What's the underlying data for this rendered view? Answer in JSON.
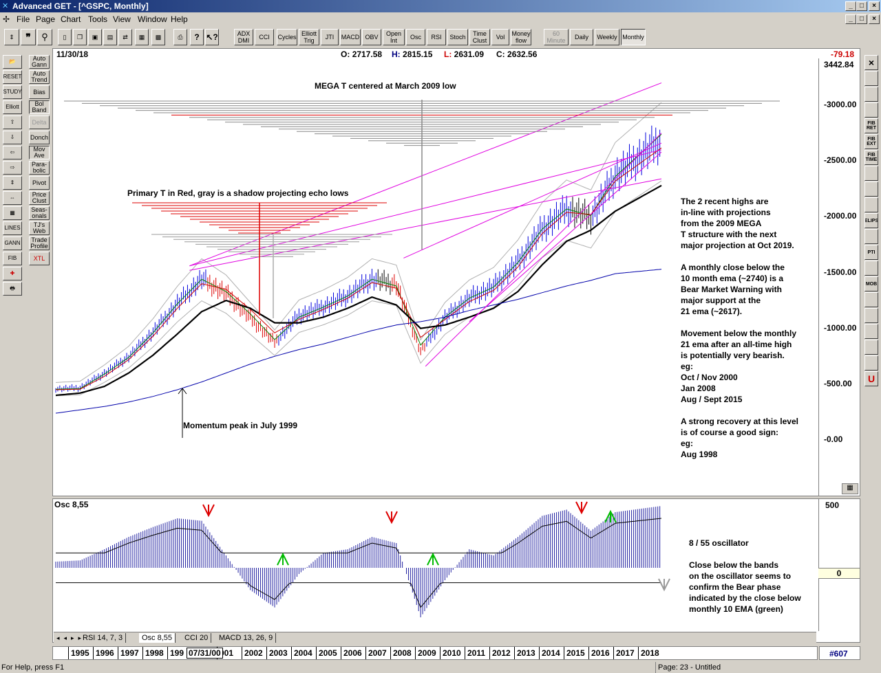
{
  "window": {
    "title": "Advanced GET - [^GSPC, Monthly]",
    "icon": "app-icon",
    "controls": {
      "minimize": "_",
      "maximize": "□",
      "close": "×"
    }
  },
  "menu": [
    "File",
    "Page",
    "Chart",
    "Tools",
    "View",
    "Window",
    "Help"
  ],
  "toolbar": {
    "indicators": [
      {
        "id": "adx",
        "label": "ADX DMI"
      },
      {
        "id": "cci",
        "label": "CCI"
      },
      {
        "id": "cycles",
        "label": "Cycles"
      },
      {
        "id": "elliott",
        "label": "Elliott Trig"
      },
      {
        "id": "jti",
        "label": "JTI"
      },
      {
        "id": "macd",
        "label": "MACD"
      },
      {
        "id": "obv",
        "label": "OBV"
      },
      {
        "id": "openint",
        "label": "Open Int"
      },
      {
        "id": "osc",
        "label": "Osc"
      },
      {
        "id": "rsi",
        "label": "RSI"
      },
      {
        "id": "stoch",
        "label": "Stoch"
      },
      {
        "id": "timeclust",
        "label": "Time Clust"
      },
      {
        "id": "vol",
        "label": "Vol"
      },
      {
        "id": "moneyflow",
        "label": "Money flow"
      }
    ],
    "timeframes": [
      {
        "id": "60min",
        "label": "60 Minute",
        "state": "disabled"
      },
      {
        "id": "daily",
        "label": "Daily",
        "state": "normal"
      },
      {
        "id": "weekly",
        "label": "Weekly",
        "state": "normal"
      },
      {
        "id": "monthly",
        "label": "Monthly",
        "state": "pressed"
      }
    ]
  },
  "left_toolbar": [
    {
      "id": "auto-gann",
      "label": "Auto Gann"
    },
    {
      "id": "auto-trend",
      "label": "Auto Trend"
    },
    {
      "id": "bias",
      "label": "Bias"
    },
    {
      "id": "bol-band",
      "label": "Bol Band"
    },
    {
      "id": "delta",
      "label": "Delta"
    },
    {
      "id": "donch",
      "label": "Donch"
    },
    {
      "id": "mov-ave",
      "label": "Mov Ave"
    },
    {
      "id": "parabolic",
      "label": "Para- bolic"
    },
    {
      "id": "pivot",
      "label": "Pivot"
    },
    {
      "id": "price-clust",
      "label": "Price Clust"
    },
    {
      "id": "seasonals",
      "label": "Seas- onals"
    },
    {
      "id": "tjs-web",
      "label": "TJ's Web"
    },
    {
      "id": "trade-profile",
      "label": "Trade Profile"
    },
    {
      "id": "xtl",
      "label": "XTL"
    }
  ],
  "left_tools": [
    "open",
    "RESET",
    "STUDY",
    "Elliott",
    "up",
    "down",
    "left",
    "right",
    "zoom-in",
    "zoom-out",
    "grid",
    "LINES",
    "GANN",
    "FIB",
    "cross",
    "print"
  ],
  "right_tools": [
    "×",
    "",
    "",
    "",
    "FIB RET",
    "FIB EXT",
    "FIB TIME",
    "",
    "",
    "",
    "ELIPS",
    "",
    "PTI",
    "",
    "MOB",
    "",
    "",
    "",
    "",
    "",
    "U"
  ],
  "chart": {
    "date": "11/30/18",
    "open_label": "O:",
    "open": "2717.58",
    "high_label": "H:",
    "high": "2815.15",
    "low_label": "L:",
    "low": "2631.09",
    "close_label": "C:",
    "close": "2632.56",
    "change": "-79.18",
    "top_price": "3442.84",
    "annotations": {
      "mega_t": "MEGA T centered at March 2009 low",
      "primary_t": "Primary T in Red, gray is a shadow projecting echo lows",
      "momentum": "Momentum peak in July 1999",
      "right_text": "The 2 recent highs are\nin-line with projections\nfrom the 2009 MEGA\nT structure with the next\nmajor projection at Oct 2019.\n\nA monthly close below the\n10 month ema (~2740) is a\nBear Market Warning with\nmajor support at the\n21 ema (~2617).\n\nMovement below the monthly\n21 ema after an all-time high\nis potentially very bearish.\neg:\nOct / Nov 2000\nJan 2008\nAug / Sept 2015\n\nA strong recovery at this level\nis of course a good sign:\neg:\nAug 1998"
    }
  },
  "oscillator": {
    "label": "Osc 8,55",
    "ytick_top": "500",
    "zero": "0",
    "annotation": "8 / 55 oscillator\n\nClose below the bands\non the oscillator seems to\nconfirm the Bear phase\nindicated by the close below\nmonthly 10 EMA (green)"
  },
  "tabs": [
    "RSI 14, 7, 3",
    "Osc 8,55",
    "CCI 20",
    "MACD 13, 26, 9"
  ],
  "time_axis": {
    "years": [
      "1995",
      "1996",
      "1997",
      "1998",
      "199",
      "",
      "001",
      "2002",
      "2003",
      "2004",
      "2005",
      "2006",
      "2007",
      "2008",
      "2009",
      "2010",
      "2011",
      "2012",
      "2013",
      "2014",
      "2015",
      "2016",
      "2017",
      "2018"
    ],
    "cursor_date": "07/31/00",
    "bar_count": "#607"
  },
  "status": {
    "help": "For Help, press F1",
    "page": "Page: 23 - Untitled"
  },
  "chart_data": {
    "type": "line",
    "title": "",
    "xlabel": "",
    "ylabel": "",
    "ylim": [
      -300,
      3442.84
    ],
    "yticks": [
      "3000.00",
      "2500.00",
      "2000.00",
      "1500.00",
      "1000.00",
      "500.00",
      "0.00"
    ],
    "x_years": [
      1994,
      1995,
      1996,
      1997,
      1998,
      1999,
      2000,
      2001,
      2002,
      2003,
      2004,
      2005,
      2006,
      2007,
      2008,
      2009,
      2010,
      2011,
      2012,
      2013,
      2014,
      2015,
      2016,
      2017,
      2018.9
    ],
    "series": [
      {
        "name": "",
        "color": "#0000cc",
        "values": [
          460,
          470,
          600,
          750,
          970,
          1230,
          1450,
          1320,
          1100,
          880,
          1120,
          1200,
          1300,
          1450,
          1400,
          800,
          1100,
          1280,
          1380,
          1600,
          1900,
          2080,
          2000,
          2380,
          2700
        ]
      },
      {
        "name": "",
        "color": "#008000",
        "values": [
          455,
          460,
          590,
          740,
          960,
          1220,
          1440,
          1330,
          1130,
          900,
          1100,
          1190,
          1290,
          1440,
          1380,
          850,
          1100,
          1270,
          1370,
          1590,
          1890,
          2070,
          2010,
          2360,
          2740
        ]
      },
      {
        "name": "",
        "color": "#cc0000",
        "values": [
          450,
          455,
          570,
          720,
          930,
          1180,
          1400,
          1350,
          1170,
          960,
          1080,
          1170,
          1270,
          1410,
          1360,
          920,
          1080,
          1240,
          1340,
          1550,
          1850,
          2040,
          2020,
          2320,
          2617
        ]
      },
      {
        "name": "",
        "color": "#000000",
        "values": [
          400,
          420,
          480,
          600,
          760,
          950,
          1150,
          1250,
          1180,
          1050,
          1050,
          1100,
          1180,
          1280,
          1210,
          1000,
          1030,
          1100,
          1180,
          1330,
          1570,
          1780,
          1880,
          2050,
          2280
        ]
      },
      {
        "name": "",
        "color": "#0000aa",
        "values": [
          240,
          270,
          300,
          340,
          390,
          450,
          520,
          600,
          680,
          750,
          810,
          860,
          920,
          980,
          1030,
          1060,
          1100,
          1160,
          1210,
          1260,
          1320,
          1380,
          1430,
          1490,
          1530
        ]
      }
    ],
    "oscillator": {
      "name": "Osc 8,55",
      "ylim": [
        -500,
        600
      ],
      "x_years": [
        1994,
        1995,
        1996,
        1997,
        1998,
        1999,
        2000,
        2001,
        2002,
        2003,
        2004,
        2005,
        2006,
        2007,
        2008,
        2009,
        2010,
        2011,
        2012,
        2013,
        2014,
        2015,
        2016,
        2017,
        2018.9
      ],
      "values": [
        50,
        60,
        150,
        250,
        330,
        400,
        380,
        100,
        -180,
        -320,
        -50,
        120,
        150,
        250,
        200,
        -400,
        -100,
        150,
        100,
        250,
        420,
        470,
        300,
        450,
        500
      ]
    }
  }
}
